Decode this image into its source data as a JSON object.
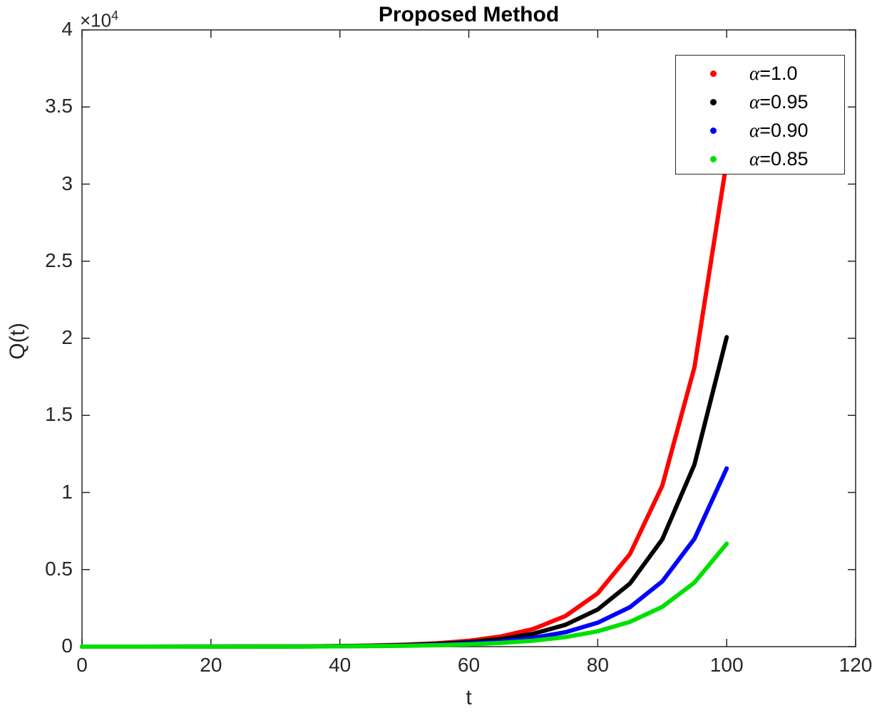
{
  "title": "Proposed Method",
  "y_scale": {
    "times": "×10",
    "exp": "4"
  },
  "axes": {
    "xlabel": "t",
    "ylabel": "Q(t)",
    "x_ticks": [
      0,
      20,
      40,
      60,
      80,
      100,
      120
    ],
    "y_ticks": [
      {
        "label": "0",
        "value": 0
      },
      {
        "label": "0.5",
        "value": 5000
      },
      {
        "label": "1",
        "value": 10000
      },
      {
        "label": "1.5",
        "value": 15000
      },
      {
        "label": "2",
        "value": 20000
      },
      {
        "label": "2.5",
        "value": 25000
      },
      {
        "label": "3",
        "value": 30000
      },
      {
        "label": "3.5",
        "value": 35000
      },
      {
        "label": "4",
        "value": 40000
      }
    ]
  },
  "legend": {
    "entries": [
      {
        "symbol": "α",
        "text": "=1.0",
        "color": "#ff0000",
        "name": "legend-entry-alpha-1.0"
      },
      {
        "symbol": "α",
        "text": "=0.95",
        "color": "#000000",
        "name": "legend-entry-alpha-0.95"
      },
      {
        "symbol": "α",
        "text": "=0.90",
        "color": "#0000ff",
        "name": "legend-entry-alpha-0.90"
      },
      {
        "symbol": "α",
        "text": "=0.85",
        "color": "#00e000",
        "name": "legend-entry-alpha-0.85"
      }
    ]
  },
  "chart_data": {
    "type": "line",
    "title": "Proposed Method",
    "xlabel": "t",
    "ylabel": "Q(t)",
    "xlim": [
      0,
      120
    ],
    "ylim": [
      0,
      40000
    ],
    "y_axis_scale_label": "×10^4",
    "grid": false,
    "legend_position": "top-right",
    "x": [
      0,
      5,
      10,
      15,
      20,
      25,
      30,
      35,
      40,
      45,
      50,
      55,
      60,
      65,
      70,
      75,
      80,
      85,
      90,
      95,
      100
    ],
    "series": [
      {
        "name": "α=1.0",
        "color": "#ff0000",
        "values": [
          0.5,
          0.9,
          1.5,
          2.6,
          4.6,
          7.9,
          13.8,
          23.9,
          41.6,
          72.2,
          125,
          218,
          379,
          659,
          1144,
          1988,
          3455,
          6003,
          10431,
          18125,
          31494
        ]
      },
      {
        "name": "α=0.95",
        "color": "#000000",
        "values": [
          0.5,
          0.8,
          1.4,
          2.5,
          4.2,
          7.1,
          12.0,
          20.4,
          34.7,
          59,
          100,
          170,
          289,
          491,
          835,
          1418,
          2409,
          4093,
          6954,
          11814,
          20072
        ]
      },
      {
        "name": "α=0.90",
        "color": "#0000ff",
        "values": [
          0.5,
          0.8,
          1.4,
          2.3,
          3.7,
          6.2,
          10.2,
          16.8,
          27.8,
          46,
          76,
          126,
          208,
          343,
          567,
          938,
          1550,
          2561,
          4233,
          6996,
          11563
        ]
      },
      {
        "name": "α=0.85",
        "color": "#00e000",
        "values": [
          0.5,
          0.8,
          1.3,
          2.1,
          3.3,
          5.4,
          8.6,
          13.9,
          22.4,
          35.9,
          57.8,
          92.9,
          149,
          240,
          386,
          621,
          999,
          1607,
          2584,
          4155,
          6681
        ]
      }
    ]
  }
}
